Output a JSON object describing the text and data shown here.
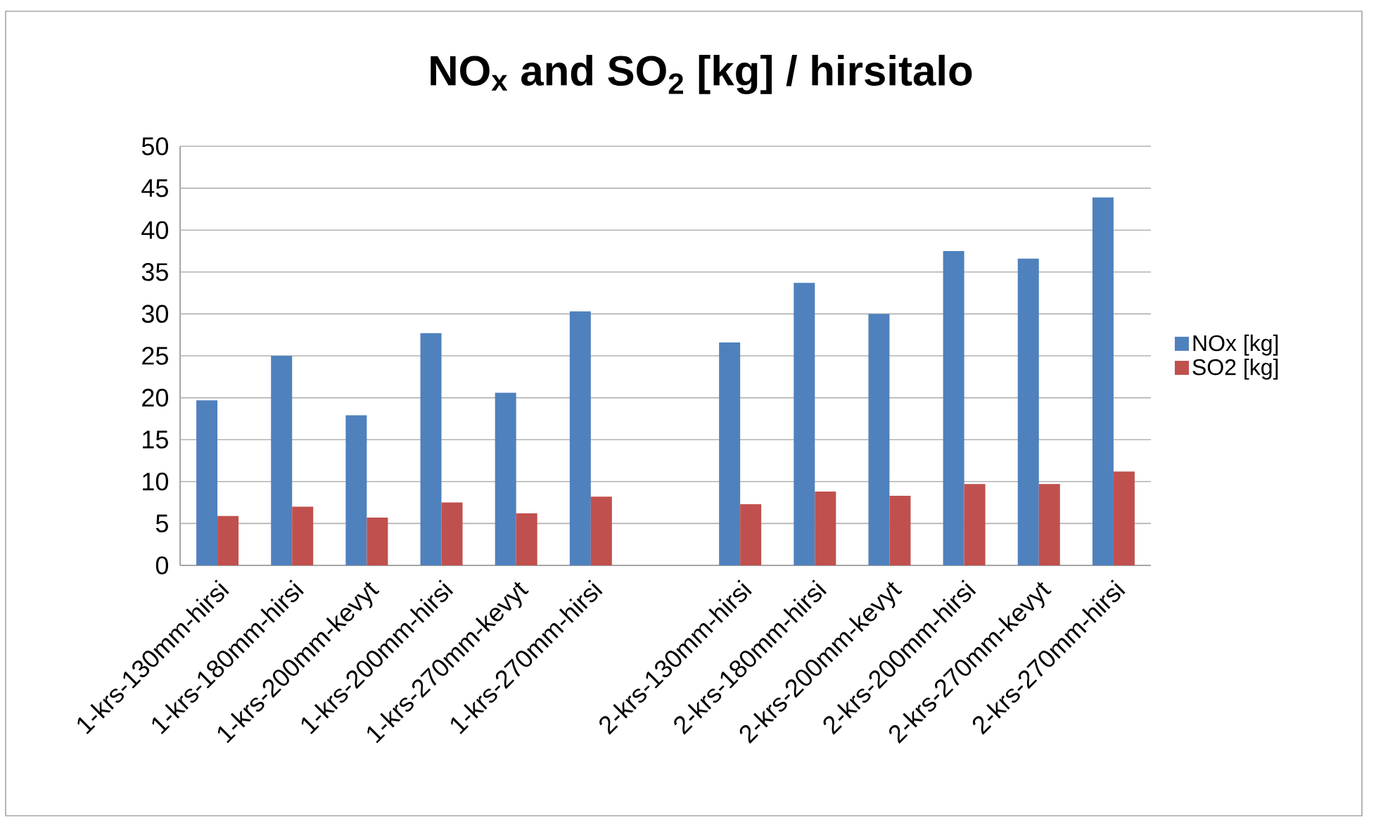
{
  "chart_data": {
    "type": "bar",
    "title": "NO$_{x}$ and SO$_{2}$ [kg] / hirsitalo",
    "categories": [
      "1-krs-130mm-hirsi",
      "1-krs-180mm-hirsi",
      "1-krs-200mm-kevyt",
      "1-krs-200mm-hirsi",
      "1-krs-270mm-kevyt",
      "1-krs-270mm-hirsi",
      null,
      "2-krs-130mm-hirsi",
      "2-krs-180mm-hirsi",
      "2-krs-200mm-kevyt",
      "2-krs-200mm-hirsi",
      "2-krs-270mm-kevyt",
      "2-krs-270mm-hirsi"
    ],
    "series": [
      {
        "name": "NOx [kg]",
        "color": "#4f81bd",
        "values": [
          19.7,
          25.0,
          17.9,
          27.7,
          20.6,
          30.3,
          null,
          26.6,
          33.7,
          30.0,
          37.5,
          36.6,
          43.9
        ]
      },
      {
        "name": "SO2 [kg]",
        "color": "#c0504d",
        "values": [
          5.9,
          7.0,
          5.7,
          7.5,
          6.2,
          8.2,
          null,
          7.3,
          8.8,
          8.3,
          9.7,
          9.7,
          11.2
        ]
      }
    ],
    "ylim": [
      0,
      50
    ],
    "yticks": [
      0,
      5,
      10,
      15,
      20,
      25,
      30,
      35,
      40,
      45,
      50
    ],
    "grid": "y",
    "legend": "right"
  }
}
